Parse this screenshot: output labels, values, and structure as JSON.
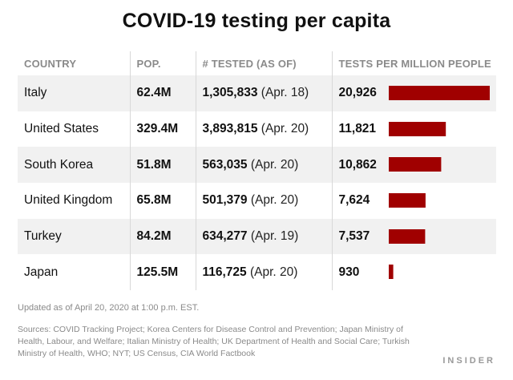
{
  "title": "COVID-19 testing per capita",
  "columns": [
    "COUNTRY",
    "POP.",
    "# TESTED (AS OF)",
    "TESTS PER MILLION PEOPLE"
  ],
  "updated": "Updated as of April 20, 2020 at 1:00 p.m. EST.",
  "sources": "Sources: COVID Tracking Project; Korea Centers for Disease Control and Prevention; Japan Ministry of Health, Labour, and Welfare; Italian Ministry of Health; UK Department of Health and Social Care; Turkish Ministry of Health, WHO; NYT; US Census, CIA World Factbook",
  "brand": "INSIDER",
  "colors": {
    "bar": "#a00000",
    "alt_row": "#f1f1f1"
  },
  "chart_data": {
    "type": "table",
    "title": "COVID-19 testing per capita",
    "columns": [
      "COUNTRY",
      "POP.",
      "# TESTED (AS OF)",
      "TESTS PER MILLION PEOPLE"
    ],
    "rows": [
      {
        "country": "Italy",
        "pop": "62.4M",
        "tested": "1,305,833",
        "as_of": "(Apr. 18)",
        "per_million_label": "20,926",
        "per_million": 20926
      },
      {
        "country": "United States",
        "pop": "329.4M",
        "tested": "3,893,815",
        "as_of": "(Apr. 20)",
        "per_million_label": "11,821",
        "per_million": 11821
      },
      {
        "country": "South Korea",
        "pop": "51.8M",
        "tested": "563,035",
        "as_of": "(Apr. 20)",
        "per_million_label": "10,862",
        "per_million": 10862
      },
      {
        "country": "United Kingdom",
        "pop": "65.8M",
        "tested": "501,379",
        "as_of": "(Apr. 20)",
        "per_million_label": "7,624",
        "per_million": 7624
      },
      {
        "country": "Turkey",
        "pop": "84.2M",
        "tested": "634,277",
        "as_of": "(Apr. 19)",
        "per_million_label": "7,537",
        "per_million": 7537
      },
      {
        "country": "Japan",
        "pop": "125.5M",
        "tested": "116,725",
        "as_of": "(Apr. 20)",
        "per_million_label": "930",
        "per_million": 930
      }
    ],
    "bar_max": 20926
  }
}
